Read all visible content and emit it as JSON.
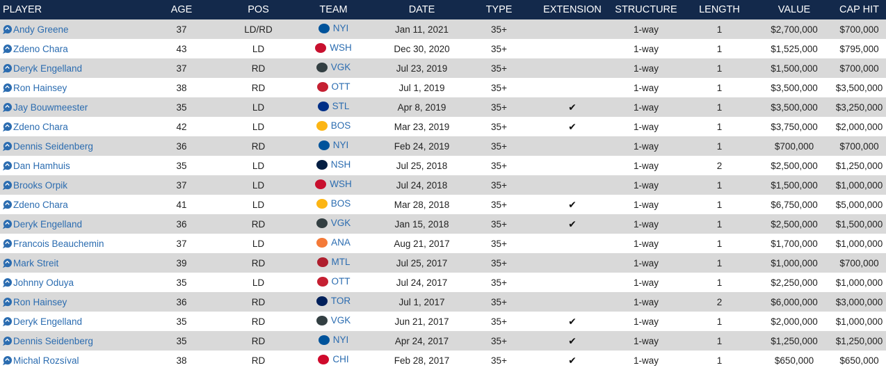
{
  "headers": {
    "player": "PLAYER",
    "age": "AGE",
    "pos": "POS",
    "team": "TEAM",
    "date": "DATE",
    "type": "TYPE",
    "extension": "EXTENSION",
    "structure": "STRUCTURE",
    "length": "LENGTH",
    "value": "VALUE",
    "cap_hit": "CAP HIT"
  },
  "icons": {
    "player": "chat-bubble-icon",
    "extension": "checkmark-icon"
  },
  "extension_mark": "✔",
  "team_colors": {
    "NYI": "#00539b",
    "WSH": "#c8102e",
    "VGK": "#333f42",
    "OTT": "#c52032",
    "STL": "#002f87",
    "BOS": "#fcb514",
    "NSH": "#041e42",
    "ANA": "#f47a38",
    "MTL": "#af1e2d",
    "TOR": "#00205b",
    "CHI": "#cf0a2c"
  },
  "rows": [
    {
      "player": "Andy Greene",
      "age": "37",
      "pos": "LD/RD",
      "team": "NYI",
      "date": "Jan 11, 2021",
      "type": "35+",
      "extension": false,
      "structure": "1-way",
      "length": "1",
      "value": "$2,700,000",
      "cap_hit": "$700,000"
    },
    {
      "player": "Zdeno Chara",
      "age": "43",
      "pos": "LD",
      "team": "WSH",
      "date": "Dec 30, 2020",
      "type": "35+",
      "extension": false,
      "structure": "1-way",
      "length": "1",
      "value": "$1,525,000",
      "cap_hit": "$795,000"
    },
    {
      "player": "Deryk Engelland",
      "age": "37",
      "pos": "RD",
      "team": "VGK",
      "date": "Jul 23, 2019",
      "type": "35+",
      "extension": false,
      "structure": "1-way",
      "length": "1",
      "value": "$1,500,000",
      "cap_hit": "$700,000"
    },
    {
      "player": "Ron Hainsey",
      "age": "38",
      "pos": "RD",
      "team": "OTT",
      "date": "Jul 1, 2019",
      "type": "35+",
      "extension": false,
      "structure": "1-way",
      "length": "1",
      "value": "$3,500,000",
      "cap_hit": "$3,500,000"
    },
    {
      "player": "Jay Bouwmeester",
      "age": "35",
      "pos": "LD",
      "team": "STL",
      "date": "Apr 8, 2019",
      "type": "35+",
      "extension": true,
      "structure": "1-way",
      "length": "1",
      "value": "$3,500,000",
      "cap_hit": "$3,250,000"
    },
    {
      "player": "Zdeno Chara",
      "age": "42",
      "pos": "LD",
      "team": "BOS",
      "date": "Mar 23, 2019",
      "type": "35+",
      "extension": true,
      "structure": "1-way",
      "length": "1",
      "value": "$3,750,000",
      "cap_hit": "$2,000,000"
    },
    {
      "player": "Dennis Seidenberg",
      "age": "36",
      "pos": "RD",
      "team": "NYI",
      "date": "Feb 24, 2019",
      "type": "35+",
      "extension": false,
      "structure": "1-way",
      "length": "1",
      "value": "$700,000",
      "cap_hit": "$700,000"
    },
    {
      "player": "Dan Hamhuis",
      "age": "35",
      "pos": "LD",
      "team": "NSH",
      "date": "Jul 25, 2018",
      "type": "35+",
      "extension": false,
      "structure": "1-way",
      "length": "2",
      "value": "$2,500,000",
      "cap_hit": "$1,250,000"
    },
    {
      "player": "Brooks Orpik",
      "age": "37",
      "pos": "LD",
      "team": "WSH",
      "date": "Jul 24, 2018",
      "type": "35+",
      "extension": false,
      "structure": "1-way",
      "length": "1",
      "value": "$1,500,000",
      "cap_hit": "$1,000,000"
    },
    {
      "player": "Zdeno Chara",
      "age": "41",
      "pos": "LD",
      "team": "BOS",
      "date": "Mar 28, 2018",
      "type": "35+",
      "extension": true,
      "structure": "1-way",
      "length": "1",
      "value": "$6,750,000",
      "cap_hit": "$5,000,000"
    },
    {
      "player": "Deryk Engelland",
      "age": "36",
      "pos": "RD",
      "team": "VGK",
      "date": "Jan 15, 2018",
      "type": "35+",
      "extension": true,
      "structure": "1-way",
      "length": "1",
      "value": "$2,500,000",
      "cap_hit": "$1,500,000"
    },
    {
      "player": "Francois Beauchemin",
      "age": "37",
      "pos": "LD",
      "team": "ANA",
      "date": "Aug 21, 2017",
      "type": "35+",
      "extension": false,
      "structure": "1-way",
      "length": "1",
      "value": "$1,700,000",
      "cap_hit": "$1,000,000"
    },
    {
      "player": "Mark Streit",
      "age": "39",
      "pos": "RD",
      "team": "MTL",
      "date": "Jul 25, 2017",
      "type": "35+",
      "extension": false,
      "structure": "1-way",
      "length": "1",
      "value": "$1,000,000",
      "cap_hit": "$700,000"
    },
    {
      "player": "Johnny Oduya",
      "age": "35",
      "pos": "LD",
      "team": "OTT",
      "date": "Jul 24, 2017",
      "type": "35+",
      "extension": false,
      "structure": "1-way",
      "length": "1",
      "value": "$2,250,000",
      "cap_hit": "$1,000,000"
    },
    {
      "player": "Ron Hainsey",
      "age": "36",
      "pos": "RD",
      "team": "TOR",
      "date": "Jul 1, 2017",
      "type": "35+",
      "extension": false,
      "structure": "1-way",
      "length": "2",
      "value": "$6,000,000",
      "cap_hit": "$3,000,000"
    },
    {
      "player": "Deryk Engelland",
      "age": "35",
      "pos": "RD",
      "team": "VGK",
      "date": "Jun 21, 2017",
      "type": "35+",
      "extension": true,
      "structure": "1-way",
      "length": "1",
      "value": "$2,000,000",
      "cap_hit": "$1,000,000"
    },
    {
      "player": "Dennis Seidenberg",
      "age": "35",
      "pos": "RD",
      "team": "NYI",
      "date": "Apr 24, 2017",
      "type": "35+",
      "extension": true,
      "structure": "1-way",
      "length": "1",
      "value": "$1,250,000",
      "cap_hit": "$1,250,000"
    },
    {
      "player": "Michal Rozsíval",
      "age": "38",
      "pos": "RD",
      "team": "CHI",
      "date": "Feb 28, 2017",
      "type": "35+",
      "extension": true,
      "structure": "1-way",
      "length": "1",
      "value": "$650,000",
      "cap_hit": "$650,000"
    }
  ]
}
